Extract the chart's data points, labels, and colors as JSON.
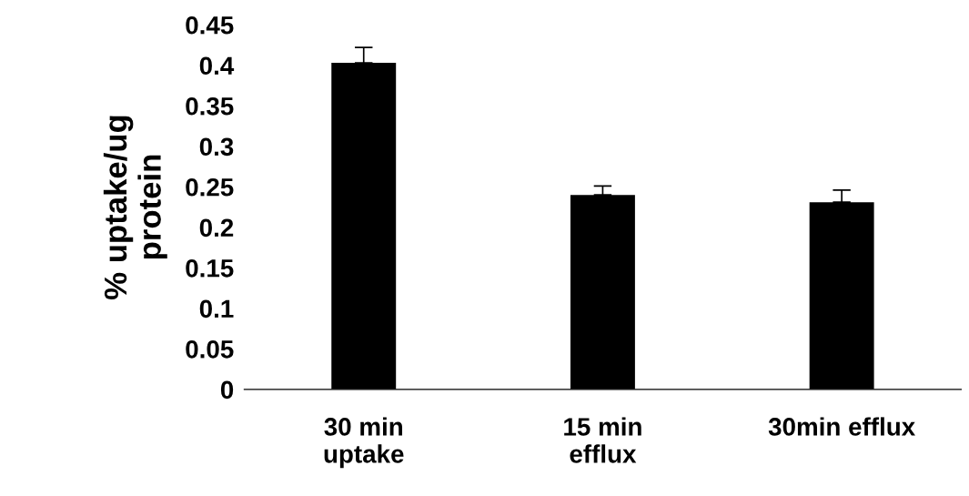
{
  "chart_data": {
    "type": "bar",
    "ylabel": "% uptake/ug\nprotein",
    "categories": [
      "30 min\nuptake",
      "15 min\nefflux",
      "30min efflux"
    ],
    "values": [
      0.403,
      0.24,
      0.231
    ],
    "errors": [
      [
        0.403,
        0.422
      ],
      [
        0.24,
        0.251
      ],
      [
        0.231,
        0.246
      ]
    ],
    "color": "#000000",
    "ylim": [
      0,
      0.45
    ],
    "yticks": [
      0,
      0.05,
      0.1,
      0.15,
      0.2,
      0.25,
      0.3,
      0.35,
      0.4,
      0.45
    ],
    "grid": false
  }
}
